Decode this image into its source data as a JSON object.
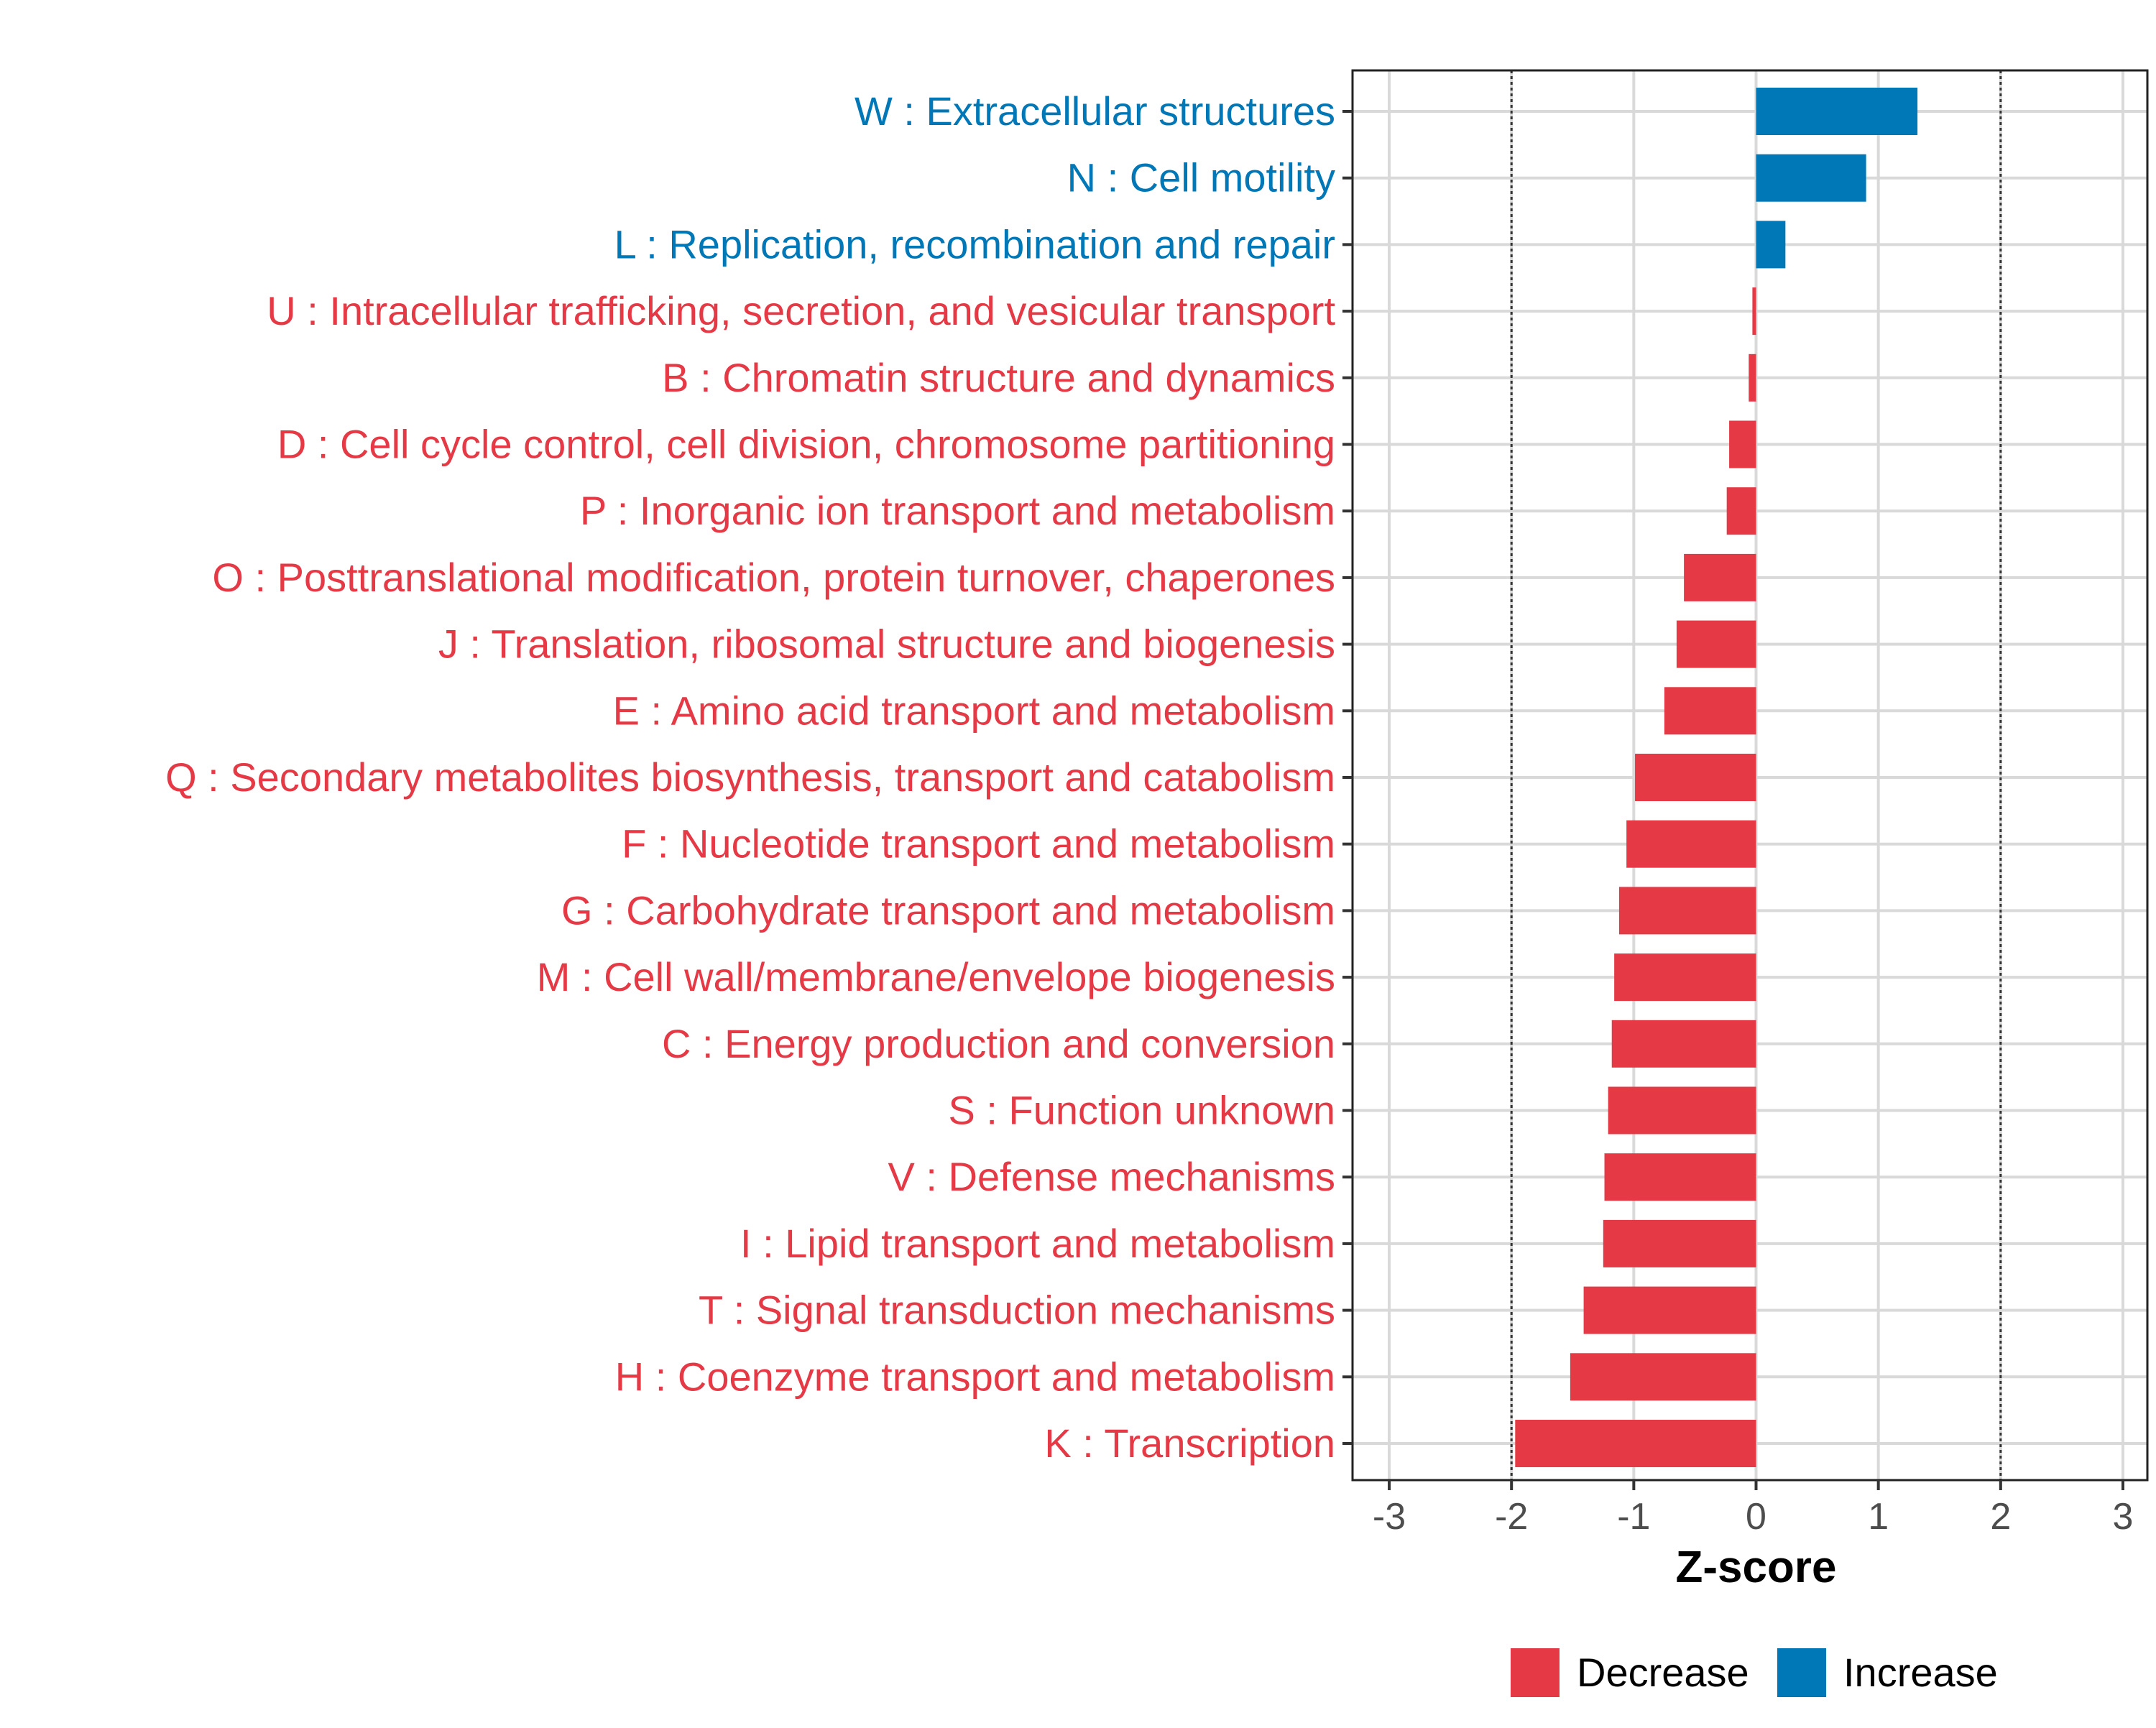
{
  "chart_data": {
    "type": "bar",
    "orientation": "horizontal",
    "title": "",
    "xlabel": "Z-score",
    "ylabel": "",
    "xlim": [
      -3.3,
      3.2
    ],
    "xticks": [
      -3,
      -2,
      -1,
      0,
      1,
      2,
      3
    ],
    "reference_lines": [
      -2,
      2
    ],
    "grid": true,
    "legend": {
      "position": "bottom",
      "entries": [
        {
          "label": "Decrease",
          "color": "#E63946"
        },
        {
          "label": "Increase",
          "color": "#0077B6"
        }
      ]
    },
    "categories": [
      "W : Extracellular structures",
      "N : Cell motility",
      "L : Replication, recombination and repair",
      "U : Intracellular trafficking, secretion, and vesicular transport",
      "B : Chromatin structure and dynamics",
      "D : Cell cycle control, cell division, chromosome partitioning",
      "P : Inorganic ion transport and metabolism",
      "O : Posttranslational modification, protein turnover, chaperones",
      "J : Translation, ribosomal structure and biogenesis",
      "E : Amino acid transport and metabolism",
      "Q : Secondary metabolites biosynthesis, transport and catabolism",
      "F : Nucleotide transport and metabolism",
      "G : Carbohydrate transport and metabolism",
      "M : Cell wall/membrane/envelope biogenesis",
      "C : Energy production and conversion",
      "S : Function unknown",
      "V : Defense mechanisms",
      "I : Lipid transport and metabolism",
      "T : Signal transduction mechanisms",
      "H : Coenzyme transport and metabolism",
      "K : Transcription"
    ],
    "values": [
      1.32,
      0.9,
      0.24,
      -0.03,
      -0.06,
      -0.22,
      -0.24,
      -0.59,
      -0.65,
      -0.75,
      -0.99,
      -1.06,
      -1.12,
      -1.16,
      -1.18,
      -1.21,
      -1.24,
      -1.25,
      -1.41,
      -1.52,
      -1.97
    ],
    "direction": [
      "Increase",
      "Increase",
      "Increase",
      "Decrease",
      "Decrease",
      "Decrease",
      "Decrease",
      "Decrease",
      "Decrease",
      "Decrease",
      "Decrease",
      "Decrease",
      "Decrease",
      "Decrease",
      "Decrease",
      "Decrease",
      "Decrease",
      "Decrease",
      "Decrease",
      "Decrease",
      "Decrease"
    ]
  }
}
